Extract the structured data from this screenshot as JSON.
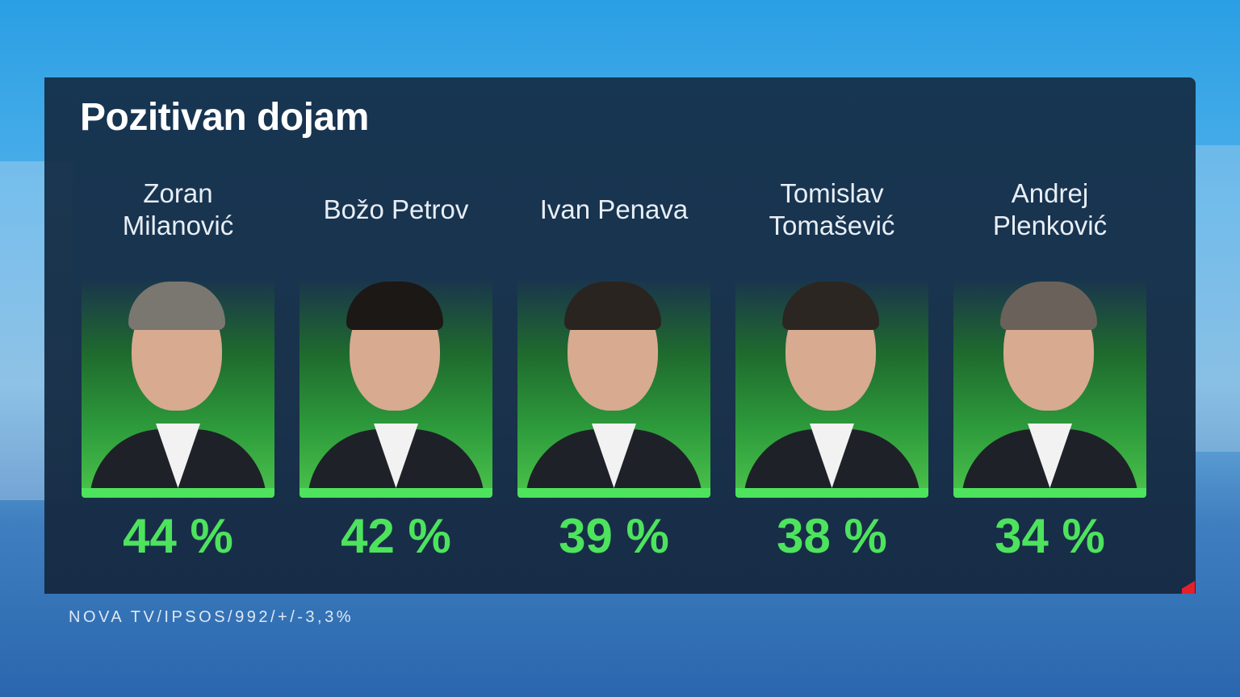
{
  "title": "Pozitivan dojam",
  "source": "NOVA TV/IPSOS/992/+/-3,3%",
  "colors": {
    "accent": "#4de35d",
    "panel": "#172c44",
    "marker": "#e4202a"
  },
  "chart_data": {
    "type": "table",
    "title": "Pozitivan dojam",
    "categories": [
      "Zoran Milanović",
      "Božo Petrov",
      "Ivan Penava",
      "Tomislav Tomašević",
      "Andrej Plenković"
    ],
    "values": [
      44,
      42,
      39,
      38,
      34
    ],
    "unit": "%"
  },
  "candidates": [
    {
      "name": "Zoran Milanović",
      "value": "44 %",
      "hair": "#7a7670"
    },
    {
      "name": "Božo Petrov",
      "value": "42 %",
      "hair": "#1c1816"
    },
    {
      "name": "Ivan Penava",
      "value": "39 %",
      "hair": "#2a2420"
    },
    {
      "name": "Tomislav Tomašević",
      "value": "38 %",
      "hair": "#2c2622"
    },
    {
      "name": "Andrej Plenković",
      "value": "34 %",
      "hair": "#6a625a"
    }
  ]
}
